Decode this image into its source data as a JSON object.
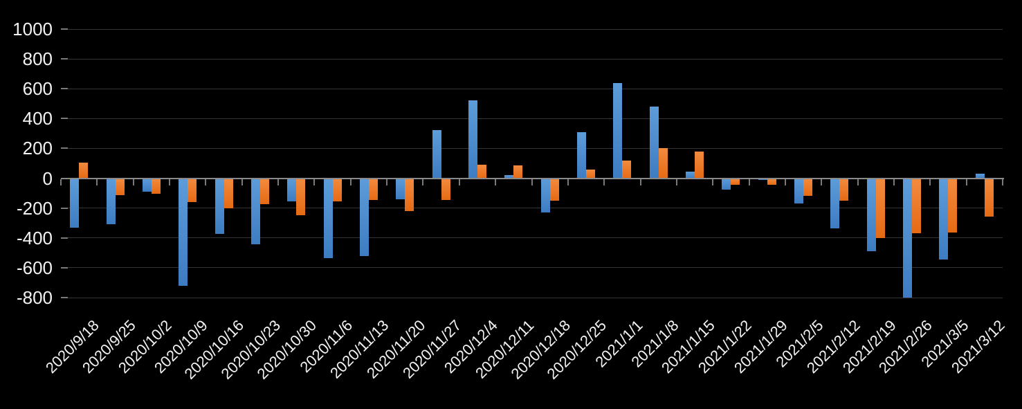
{
  "chart_data": {
    "type": "bar",
    "title": "",
    "categories": [
      "2020/9/18",
      "2020/9/25",
      "2020/10/2",
      "2020/10/9",
      "2020/10/16",
      "2020/10/23",
      "2020/10/30",
      "2020/11/6",
      "2020/11/13",
      "2020/11/20",
      "2020/11/27",
      "2020/12/4",
      "2020/12/11",
      "2020/12/18",
      "2020/12/25",
      "2021/1/1",
      "2021/1/8",
      "2021/1/15",
      "2021/1/22",
      "2021/1/29",
      "2021/2/5",
      "2021/2/12",
      "2021/2/19",
      "2021/2/26",
      "2021/3/5",
      "2021/3/12"
    ],
    "series": [
      {
        "name": "series-blue",
        "color_top": "#5D9CD9",
        "color_bottom": "#3E7CC2",
        "values": [
          -330,
          -310,
          -90,
          -720,
          -375,
          -445,
          -155,
          -535,
          -520,
          -140,
          325,
          520,
          20,
          -230,
          310,
          640,
          480,
          45,
          -75,
          -10,
          -170,
          -335,
          -490,
          -800,
          -545,
          30
        ]
      },
      {
        "name": "series-orange",
        "color_top": "#F28B3F",
        "color_bottom": "#E66A14",
        "values": [
          105,
          -115,
          -105,
          -160,
          -200,
          -175,
          -250,
          -155,
          -145,
          -220,
          -145,
          90,
          85,
          -150,
          60,
          120,
          200,
          180,
          -45,
          -45,
          -120,
          -150,
          -400,
          -370,
          -365,
          -255
        ]
      }
    ],
    "y_ticks": [
      1000,
      800,
      600,
      400,
      200,
      0,
      -200,
      -400,
      -600,
      -800
    ],
    "ylim": [
      -800,
      1000
    ],
    "grid": true,
    "legend": "none",
    "colors": {
      "background": "#000000",
      "gridline": "#343434",
      "axis_line": "#8A8A8A",
      "tick": "#7A7A7A",
      "label": "#F2F2F2"
    }
  }
}
